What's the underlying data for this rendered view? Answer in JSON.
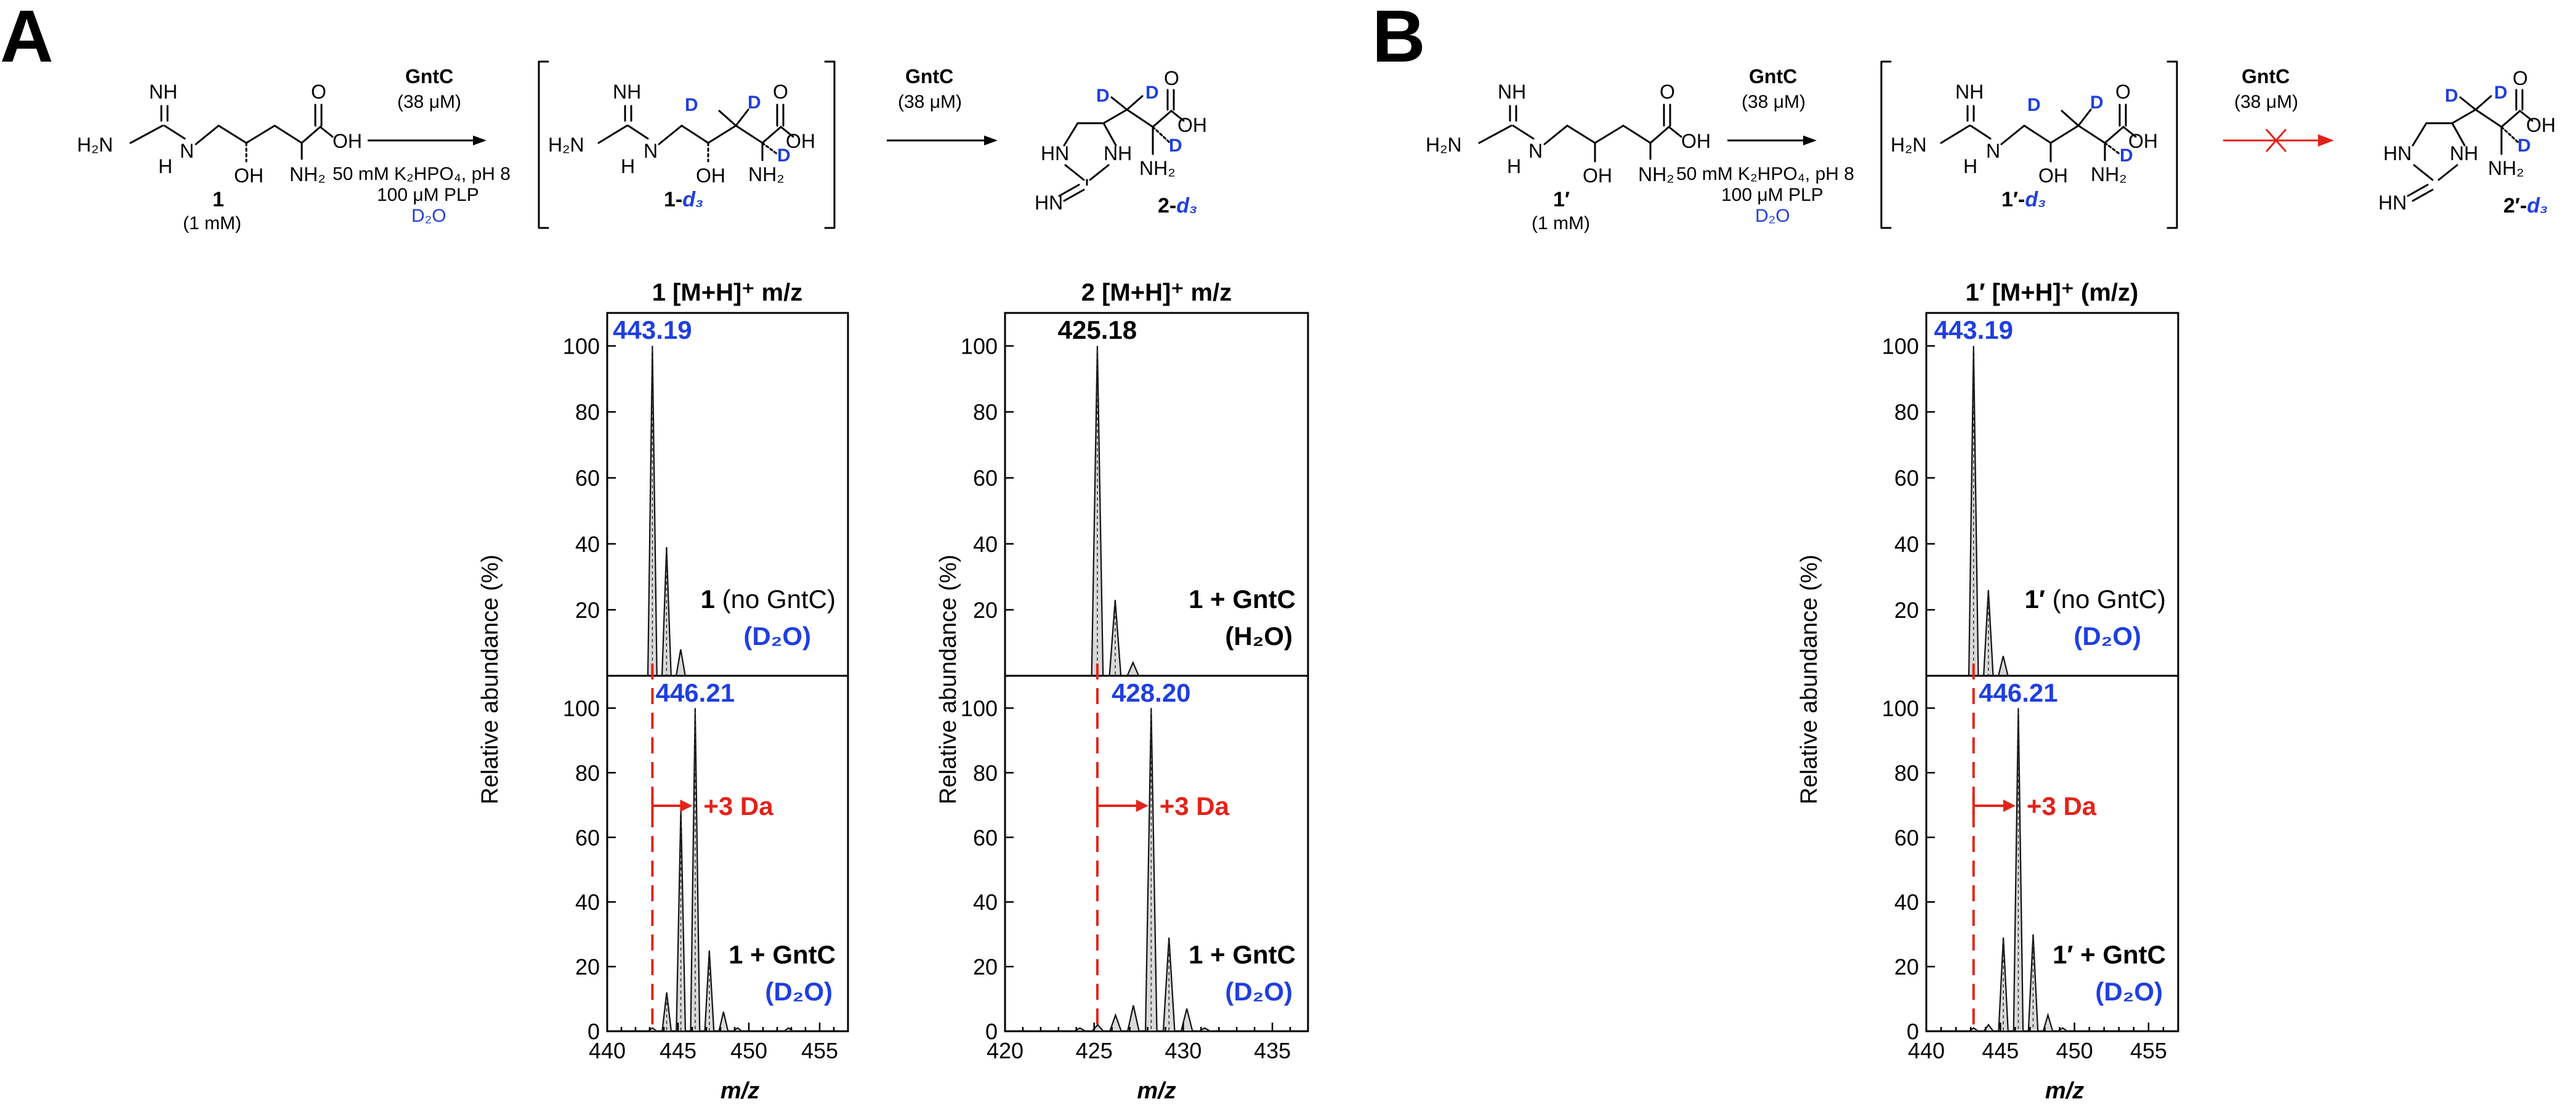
{
  "figure": {
    "panels": [
      "A",
      "B"
    ],
    "colors": {
      "deuterium": "#1f3fe0",
      "shift": "#e2231a",
      "peak_fill": "#d9d9d9"
    }
  },
  "scheme_A": {
    "start_label": "1",
    "start_conc": "(1 mM)",
    "enzyme": "GntC",
    "enzyme_conc": "(38 μM)",
    "buffer": "50 mM K₂HPO₄, pH 8",
    "cofactor": "100 μM PLP",
    "solvent": "D₂O",
    "intermediate_label_prefix": "1-",
    "product_label_prefix": "2-",
    "deuterated_suffix": "d₃",
    "deuterium": "D",
    "atom_labels": {
      "nh": "NH",
      "h2n": "H₂N",
      "h": "H",
      "n": "N",
      "oh": "OH",
      "o": "O",
      "nh2": "NH₂",
      "hn": "HN"
    }
  },
  "scheme_B": {
    "start_label": "1′",
    "start_conc": "(1 mM)",
    "enzyme": "GntC",
    "enzyme_conc": "(38 μM)",
    "buffer": "50 mM K₂HPO₄, pH 8",
    "cofactor": "100 μM PLP",
    "solvent": "D₂O",
    "intermediate_label_prefix": "1′-",
    "product_label_prefix": "2′-",
    "deuterated_suffix": "d₃",
    "deuterium": "D"
  },
  "chart_data": [
    {
      "type": "bar",
      "title": "1 [M+H]⁺ m/z",
      "xlabel": "m/z",
      "ylabel": "Relative abundance (%)",
      "xlim": [
        440,
        457
      ],
      "xticks": [
        440,
        445,
        450,
        455
      ],
      "ylim": [
        0,
        110
      ],
      "yticks": [
        20,
        40,
        60,
        80,
        100
      ],
      "shift_label": "+3 Da",
      "reference_mz": 443.19,
      "subplots": [
        {
          "name": "1 (no GntC) (D2O)",
          "label_main": "1",
          "label_rest": " (no GntC)",
          "label_solvent": "(D₂O)",
          "peak_label": "443.19",
          "peak_label_color": "#1f3fe0",
          "series": [
            {
              "x": [
                443.19,
                444.19,
                445.19
              ],
              "values": [
                100,
                39,
                8
              ]
            }
          ]
        },
        {
          "name": "1 + GntC (D2O)",
          "label_main": "1 + GntC",
          "label_solvent": "(D₂O)",
          "peak_label": "446.21",
          "peak_label_color": "#1f3fe0",
          "series": [
            {
              "x": [
                443.19,
                444.2,
                445.2,
                446.21,
                447.21,
                448.21,
                449.2,
                452.8
              ],
              "values": [
                1,
                12,
                69,
                100,
                25,
                6,
                1,
                1
              ]
            }
          ]
        }
      ]
    },
    {
      "type": "bar",
      "title": "2 [M+H]⁺ m/z",
      "xlabel": "",
      "ylabel": "Relative abundance (%)",
      "xlim": [
        420,
        437
      ],
      "xticks": [
        420,
        425,
        430,
        435
      ],
      "ylim": [
        0,
        110
      ],
      "yticks": [
        20,
        40,
        60,
        80,
        100
      ],
      "shift_label": "+3 Da",
      "reference_mz": 425.18,
      "subplots": [
        {
          "name": "1 + GntC (H2O)",
          "label_main": "1 + GntC",
          "label_solvent": "(H₂O)",
          "peak_label": "425.18",
          "peak_label_color": "#000000",
          "series": [
            {
              "x": [
                425.18,
                426.18,
                427.18
              ],
              "values": [
                100,
                23,
                4
              ]
            }
          ]
        },
        {
          "name": "1 + GntC (D2O)",
          "label_main": "1 + GntC",
          "label_solvent": "(D₂O)",
          "peak_label": "428.20",
          "peak_label_color": "#1f3fe0",
          "series": [
            {
              "x": [
                424.2,
                425.2,
                426.2,
                427.2,
                428.2,
                429.2,
                430.2,
                431.2
              ],
              "values": [
                1,
                2,
                5,
                8,
                100,
                29,
                7,
                1
              ]
            }
          ]
        }
      ]
    },
    {
      "type": "bar",
      "title": "1′ [M+H]⁺ (m/z)",
      "xlabel": "m/z",
      "ylabel": "Relative abundance (%)",
      "xlim": [
        440,
        457
      ],
      "xticks": [
        440,
        445,
        450,
        455
      ],
      "ylim": [
        0,
        110
      ],
      "yticks": [
        20,
        40,
        60,
        80,
        100
      ],
      "shift_label": "+3 Da",
      "reference_mz": 443.19,
      "subplots": [
        {
          "name": "1′ (no GntC) (D2O)",
          "label_main": "1′",
          "label_rest": " (no GntC)",
          "label_solvent": "(D₂O)",
          "peak_label": "443.19",
          "peak_label_color": "#1f3fe0",
          "series": [
            {
              "x": [
                443.19,
                444.19,
                445.19
              ],
              "values": [
                100,
                26,
                6
              ]
            }
          ]
        },
        {
          "name": "1′ + GntC (D2O)",
          "label_main": "1′ + GntC",
          "label_solvent": "(D₂O)",
          "peak_label": "446.21",
          "peak_label_color": "#1f3fe0",
          "series": [
            {
              "x": [
                443.19,
                444.2,
                445.2,
                446.21,
                447.21,
                448.21,
                449.2
              ],
              "values": [
                1,
                2,
                29,
                100,
                30,
                5,
                1
              ]
            }
          ]
        }
      ]
    }
  ]
}
